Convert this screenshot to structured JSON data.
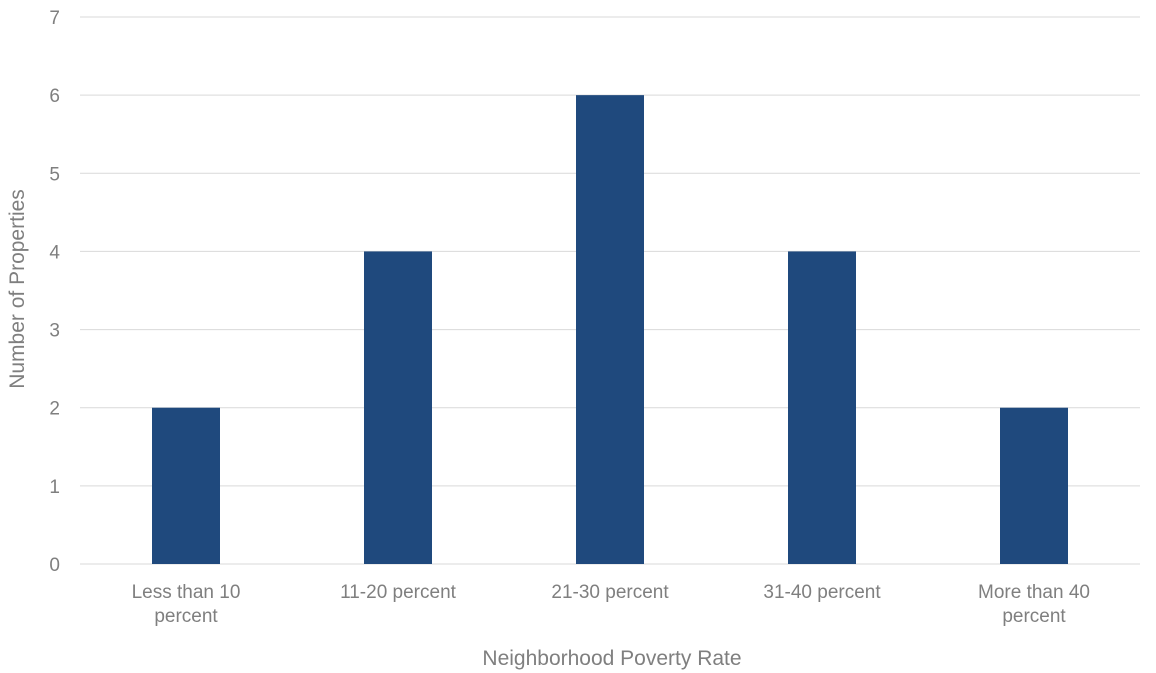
{
  "chart_data": {
    "type": "bar",
    "title": "",
    "xlabel": "Neighborhood Poverty Rate",
    "ylabel": "Number of Properties",
    "categories": [
      [
        "Less than 10",
        "percent"
      ],
      [
        "11-20 percent"
      ],
      [
        "21-30 percent"
      ],
      [
        "31-40 percent"
      ],
      [
        "More than 40",
        "percent"
      ]
    ],
    "values": [
      2,
      4,
      6,
      4,
      2
    ],
    "ylim": [
      0,
      7
    ],
    "yticks": [
      "0",
      "1",
      "2",
      "3",
      "4",
      "5",
      "6",
      "7"
    ],
    "grid": true,
    "legend": "none",
    "bar_color": "#1f497d"
  }
}
